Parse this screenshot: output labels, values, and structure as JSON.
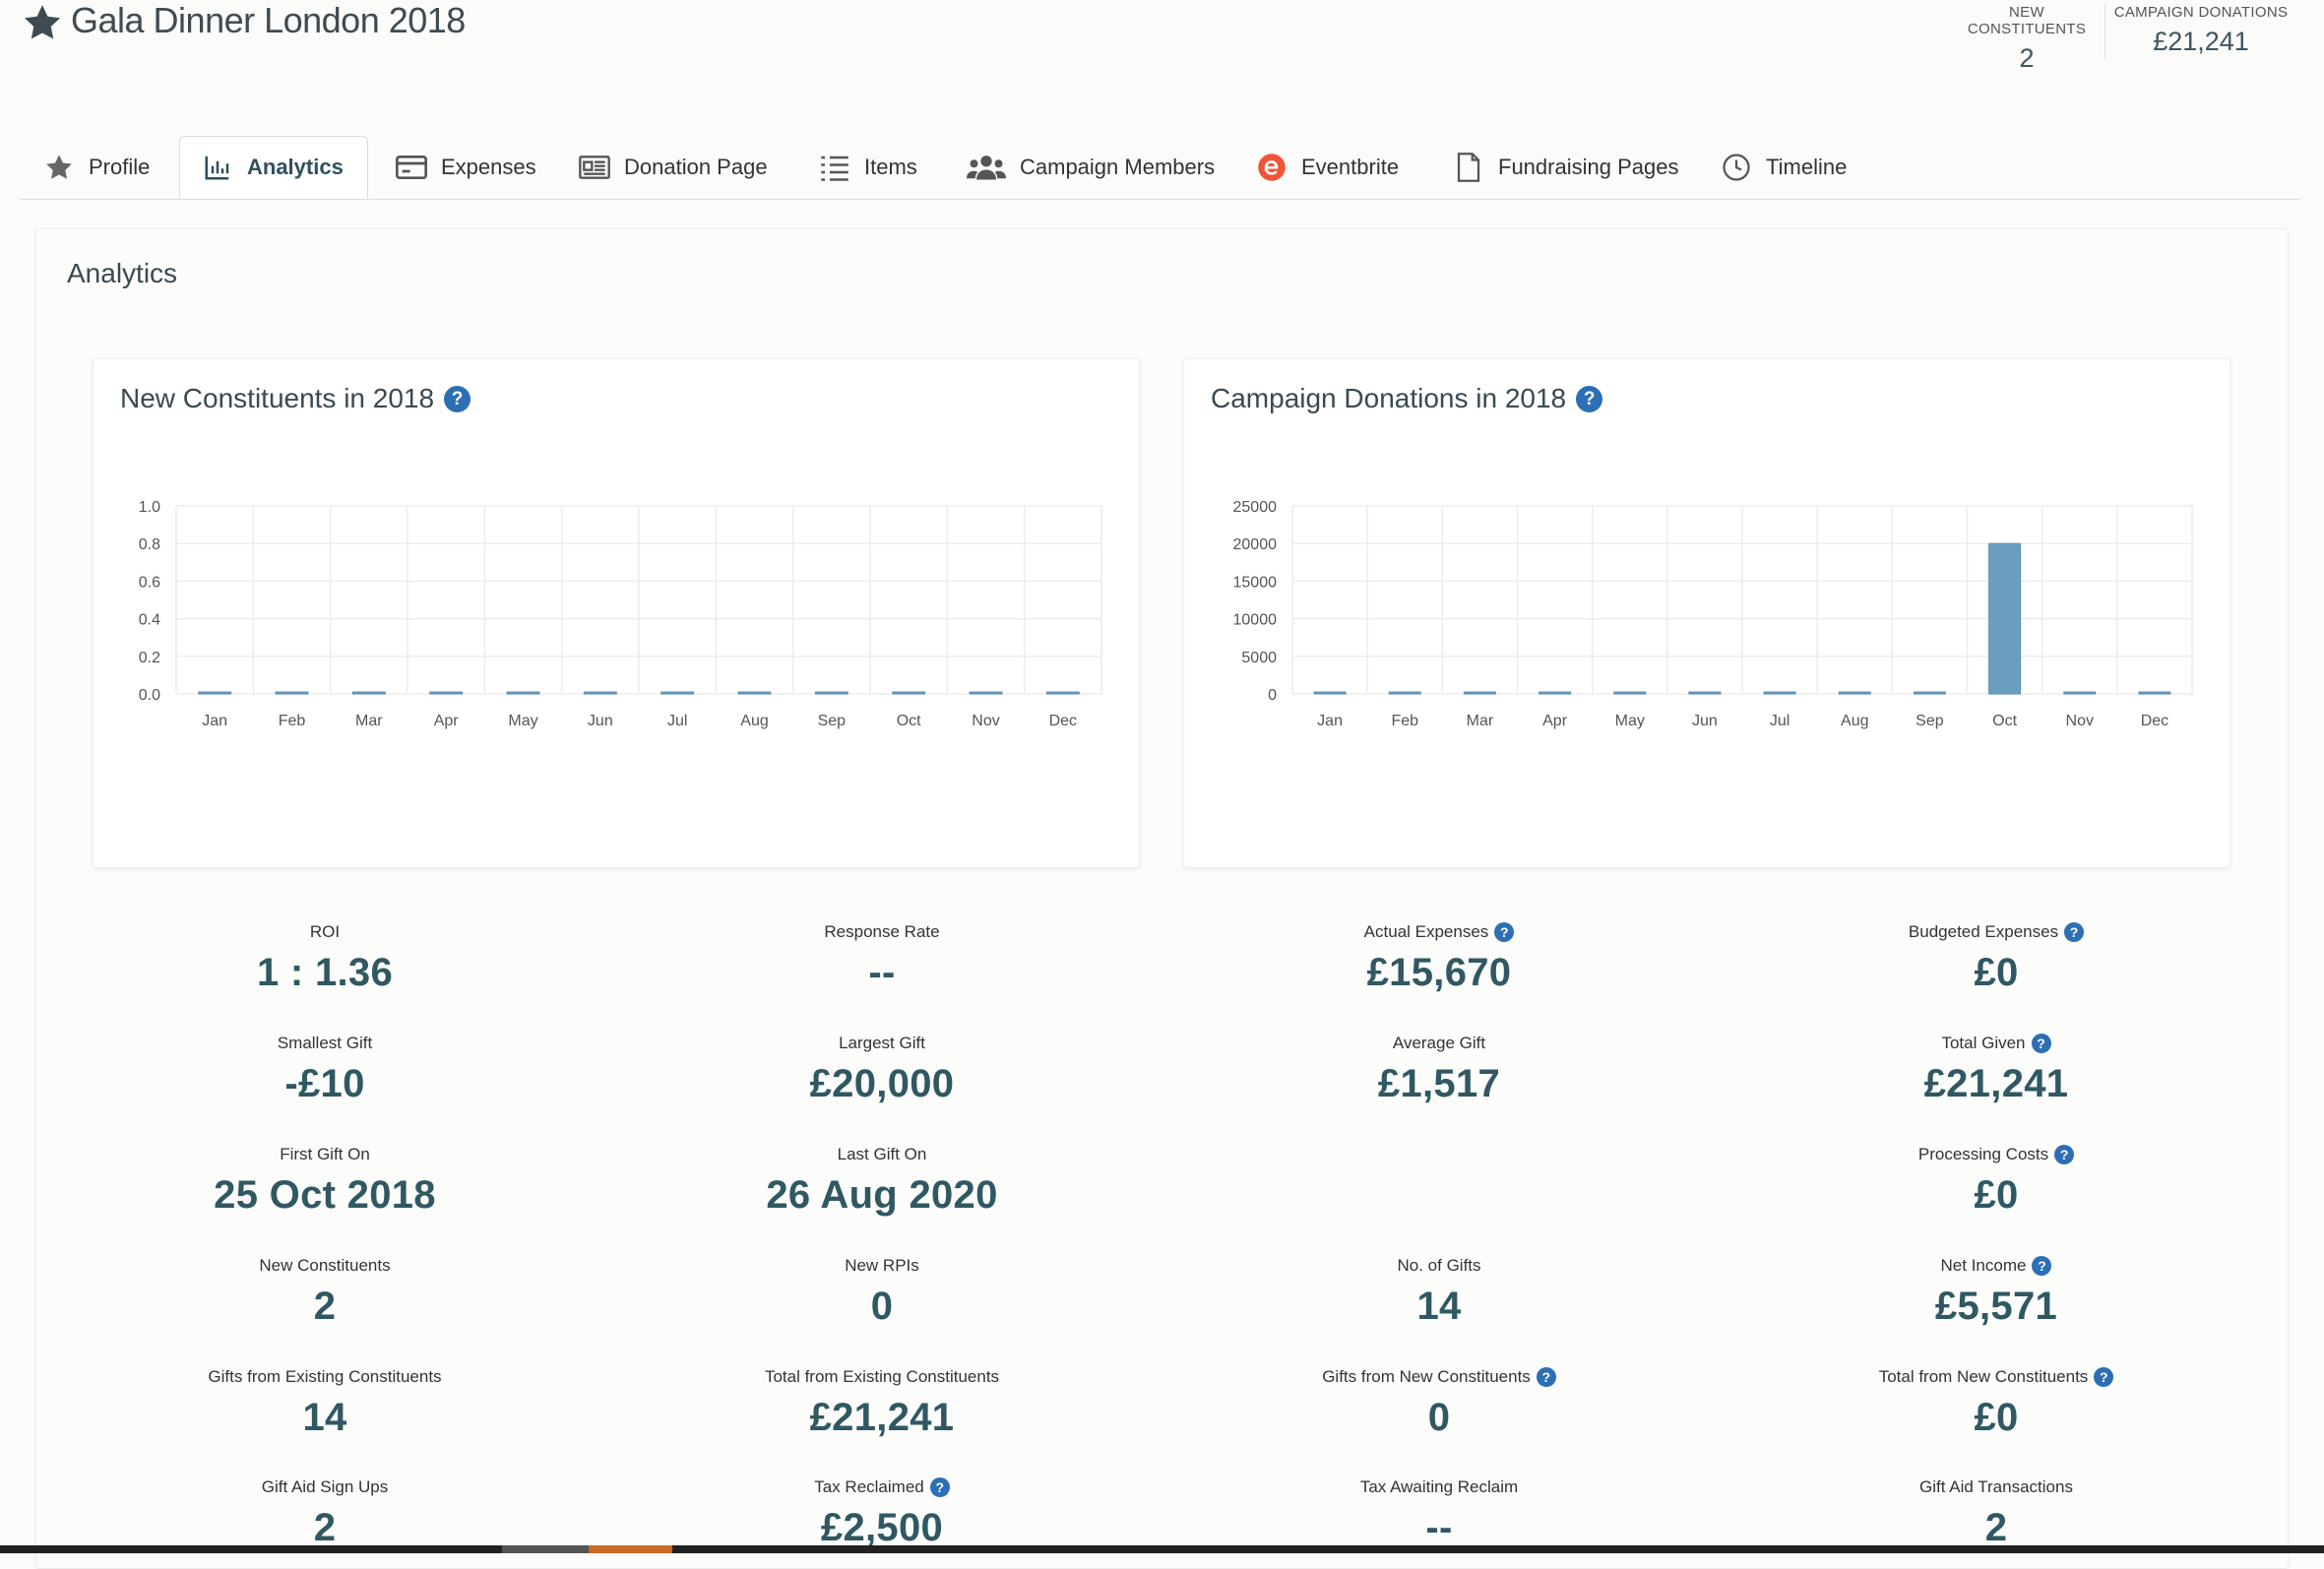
{
  "header": {
    "title": "Gala Dinner London 2018",
    "new_constituents_label": "NEW CONSTITUENTS",
    "new_constituents_value": "2",
    "campaign_donations_label": "CAMPAIGN DONATIONS",
    "campaign_donations_value": "£21,241"
  },
  "tabs": [
    {
      "label": "Profile",
      "icon": "star-icon"
    },
    {
      "label": "Analytics",
      "icon": "bar-chart-icon",
      "active": true
    },
    {
      "label": "Expenses",
      "icon": "card-icon"
    },
    {
      "label": "Donation Page",
      "icon": "page-icon"
    },
    {
      "label": "Items",
      "icon": "list-icon"
    },
    {
      "label": "Campaign Members",
      "icon": "users-icon"
    },
    {
      "label": "Eventbrite",
      "icon": "eventbrite-icon"
    },
    {
      "label": "Fundraising Pages",
      "icon": "file-icon"
    },
    {
      "label": "Timeline",
      "icon": "clock-icon"
    }
  ],
  "panel": {
    "title": "Analytics"
  },
  "chart_data": [
    {
      "type": "bar",
      "title": "New Constituents in 2018",
      "categories": [
        "Jan",
        "Feb",
        "Mar",
        "Apr",
        "May",
        "Jun",
        "Jul",
        "Aug",
        "Sep",
        "Oct",
        "Nov",
        "Dec"
      ],
      "values": [
        0,
        0,
        0,
        0,
        0,
        0,
        0,
        0,
        0,
        0,
        0,
        0
      ],
      "yticks": [
        "0.0",
        "0.2",
        "0.4",
        "0.6",
        "0.8",
        "1.0"
      ],
      "ylim": [
        0,
        1
      ],
      "grid": true,
      "color": "#6a9ec0"
    },
    {
      "type": "bar",
      "title": "Campaign Donations in 2018",
      "categories": [
        "Jan",
        "Feb",
        "Mar",
        "Apr",
        "May",
        "Jun",
        "Jul",
        "Aug",
        "Sep",
        "Oct",
        "Nov",
        "Dec"
      ],
      "values": [
        0,
        0,
        0,
        0,
        0,
        0,
        0,
        0,
        0,
        20000,
        0,
        0
      ],
      "yticks": [
        "0",
        "5000",
        "10000",
        "15000",
        "20000",
        "25000"
      ],
      "ylim": [
        0,
        25000
      ],
      "grid": true,
      "color": "#6a9ec0"
    }
  ],
  "metrics": [
    [
      {
        "label": "ROI",
        "value": "1 : 1.36"
      },
      {
        "label": "Response Rate",
        "value": "--"
      },
      {
        "label": "Actual Expenses",
        "value": "£15,670",
        "help": true
      },
      {
        "label": "Budgeted Expenses",
        "value": "£0",
        "help": true
      }
    ],
    [
      {
        "label": "Smallest Gift",
        "value": "-£10"
      },
      {
        "label": "Largest Gift",
        "value": "£20,000"
      },
      {
        "label": "Average Gift",
        "value": "£1,517"
      },
      {
        "label": "Total Given",
        "value": "£21,241",
        "help": true
      }
    ],
    [
      {
        "label": "First Gift On",
        "value": "25 Oct 2018"
      },
      {
        "label": "Last Gift On",
        "value": "26 Aug 2020"
      },
      null,
      {
        "label": "Processing Costs",
        "value": "£0",
        "help": true
      }
    ],
    [
      {
        "label": "New Constituents",
        "value": "2"
      },
      {
        "label": "New RPIs",
        "value": "0"
      },
      {
        "label": "No. of Gifts",
        "value": "14"
      },
      {
        "label": "Net Income",
        "value": "£5,571",
        "help": true
      }
    ],
    [
      {
        "label": "Gifts from Existing Constituents",
        "value": "14"
      },
      {
        "label": "Total from Existing Constituents",
        "value": "£21,241"
      },
      {
        "label": "Gifts from New Constituents",
        "value": "0",
        "help": true
      },
      {
        "label": "Total from New Constituents",
        "value": "£0",
        "help": true
      }
    ],
    [
      {
        "label": "Gift Aid Sign Ups",
        "value": "2"
      },
      {
        "label": "Tax Reclaimed",
        "value": "£2,500",
        "help": true
      },
      {
        "label": "Tax Awaiting Reclaim",
        "value": "--"
      },
      {
        "label": "Gift Aid Transactions",
        "value": "2"
      }
    ]
  ],
  "help_glyph": "?"
}
